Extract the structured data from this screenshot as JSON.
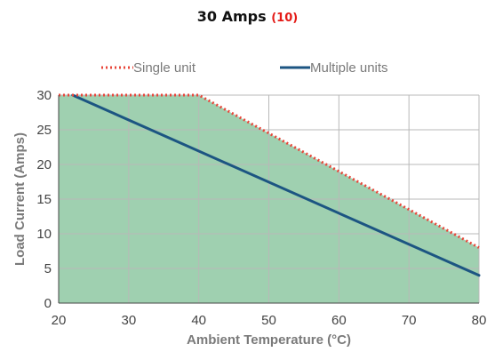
{
  "header": {
    "title": "30 Amps",
    "note": "(10)",
    "note_color": "#e41b17"
  },
  "chart_data": {
    "type": "area",
    "title": "30 Amps",
    "xlabel": "Ambient Temperature (°C)",
    "ylabel": "Load Current (Amps)",
    "xlim": [
      20,
      80
    ],
    "ylim": [
      0,
      30
    ],
    "xticks": [
      "20",
      "30",
      "40",
      "50",
      "60",
      "70",
      "80"
    ],
    "yticks": [
      "0",
      "5",
      "10",
      "15",
      "20",
      "25",
      "30"
    ],
    "grid": true,
    "legend_position": "top",
    "fill_color": "#9fd0b0",
    "series": [
      {
        "name": "Single unit",
        "style": "dotted",
        "color": "#e8463a",
        "x": [
          20,
          40,
          80
        ],
        "y": [
          30,
          30,
          8
        ]
      },
      {
        "name": "Multiple units",
        "style": "solid",
        "color": "#1c5582",
        "x": [
          22,
          80
        ],
        "y": [
          30,
          4
        ]
      }
    ]
  }
}
